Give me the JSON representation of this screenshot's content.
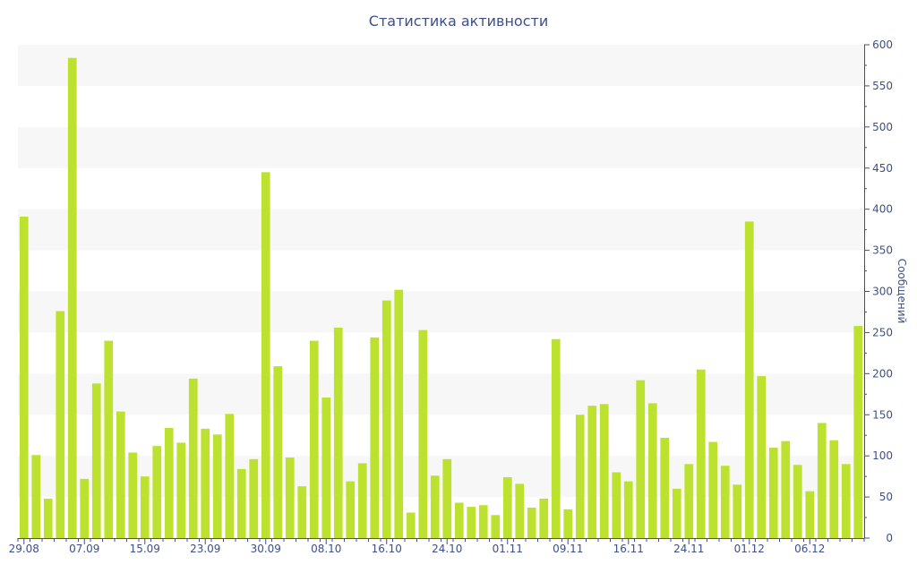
{
  "chart_data": {
    "type": "bar",
    "title": "Статистика активности",
    "ylabel": "Сообщений",
    "ylim": [
      0,
      600
    ],
    "y_ticks": [
      0,
      50,
      100,
      150,
      200,
      250,
      300,
      350,
      400,
      450,
      500,
      550,
      600
    ],
    "y_axis_side": "right",
    "grid": "alternating horizontal bands",
    "x_tick_labels": [
      "29.08",
      "07.09",
      "15.09",
      "23.09",
      "30.09",
      "08.10",
      "16.10",
      "24.10",
      "01.11",
      "09.11",
      "16.11",
      "24.11",
      "01.12",
      "06.12"
    ],
    "x_tick_label_bar_index": [
      0,
      5,
      10,
      15,
      20,
      25,
      30,
      35,
      40,
      45,
      50,
      55,
      60,
      65
    ],
    "values": [
      391,
      101,
      48,
      276,
      584,
      72,
      188,
      240,
      154,
      104,
      75,
      112,
      134,
      116,
      194,
      133,
      126,
      151,
      84,
      96,
      445,
      209,
      98,
      63,
      240,
      171,
      256,
      69,
      91,
      244,
      289,
      302,
      31,
      253,
      76,
      96,
      43,
      38,
      40,
      28,
      74,
      66,
      37,
      48,
      242,
      35,
      150,
      161,
      163,
      80,
      69,
      192,
      164,
      122,
      60,
      90,
      205,
      117,
      88,
      65,
      385,
      197,
      110,
      118,
      89,
      57,
      140,
      119,
      90,
      258
    ],
    "colors": {
      "bar": "#bde12f",
      "axis": "#3d4f8a",
      "band": "#f7f7f7"
    }
  }
}
